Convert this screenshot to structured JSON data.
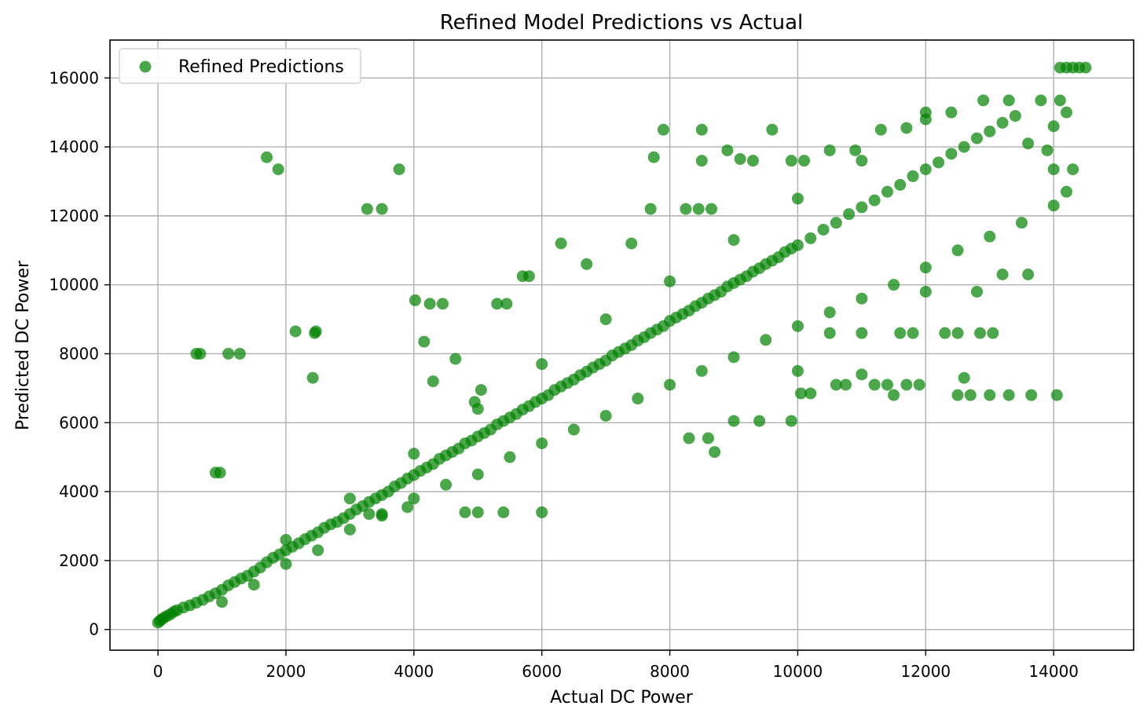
{
  "chart_data": {
    "type": "scatter",
    "title": "Refined Model Predictions vs Actual",
    "xlabel": "Actual DC Power",
    "ylabel": "Predicted DC Power",
    "xlim": [
      -750,
      15250
    ],
    "ylim": [
      -600,
      17100
    ],
    "xticks": [
      0,
      2000,
      4000,
      6000,
      8000,
      10000,
      12000,
      14000
    ],
    "yticks": [
      0,
      2000,
      4000,
      6000,
      8000,
      10000,
      12000,
      14000,
      16000
    ],
    "xtick_labels": [
      "0",
      "2000",
      "4000",
      "6000",
      "8000",
      "10000",
      "12000",
      "14000"
    ],
    "ytick_labels": [
      "0",
      "2000",
      "4000",
      "6000",
      "8000",
      "10000",
      "12000",
      "14000",
      "16000"
    ],
    "grid": true,
    "legend_position": "top-left",
    "series": [
      {
        "name": "Refined Predictions",
        "color": "#008000",
        "alpha": 0.7,
        "points": [
          [
            0,
            200
          ],
          [
            30,
            250
          ],
          [
            60,
            300
          ],
          [
            100,
            350
          ],
          [
            150,
            400
          ],
          [
            200,
            450
          ],
          [
            250,
            520
          ],
          [
            300,
            560
          ],
          [
            400,
            640
          ],
          [
            500,
            700
          ],
          [
            600,
            780
          ],
          [
            700,
            860
          ],
          [
            800,
            960
          ],
          [
            900,
            1050
          ],
          [
            1000,
            1150
          ],
          [
            1100,
            1280
          ],
          [
            1200,
            1380
          ],
          [
            1300,
            1480
          ],
          [
            1400,
            1560
          ],
          [
            1500,
            1680
          ],
          [
            1600,
            1800
          ],
          [
            1700,
            1950
          ],
          [
            1800,
            2080
          ],
          [
            1900,
            2180
          ],
          [
            2000,
            2300
          ],
          [
            2100,
            2400
          ],
          [
            2200,
            2500
          ],
          [
            2300,
            2620
          ],
          [
            2400,
            2720
          ],
          [
            2500,
            2820
          ],
          [
            2600,
            2950
          ],
          [
            2700,
            3050
          ],
          [
            2800,
            3120
          ],
          [
            2900,
            3230
          ],
          [
            3000,
            3350
          ],
          [
            3100,
            3480
          ],
          [
            3200,
            3580
          ],
          [
            3300,
            3700
          ],
          [
            3400,
            3800
          ],
          [
            3500,
            3900
          ],
          [
            3600,
            4000
          ],
          [
            3700,
            4150
          ],
          [
            3800,
            4250
          ],
          [
            3900,
            4380
          ],
          [
            4000,
            4480
          ],
          [
            4100,
            4600
          ],
          [
            4200,
            4700
          ],
          [
            4300,
            4800
          ],
          [
            4400,
            4950
          ],
          [
            4500,
            5050
          ],
          [
            4600,
            5150
          ],
          [
            4700,
            5250
          ],
          [
            4800,
            5400
          ],
          [
            4900,
            5480
          ],
          [
            5000,
            5600
          ],
          [
            5100,
            5700
          ],
          [
            5200,
            5800
          ],
          [
            5300,
            5950
          ],
          [
            5400,
            6050
          ],
          [
            5500,
            6150
          ],
          [
            5600,
            6250
          ],
          [
            5700,
            6380
          ],
          [
            5800,
            6480
          ],
          [
            5900,
            6600
          ],
          [
            6000,
            6700
          ],
          [
            6100,
            6800
          ],
          [
            6200,
            6950
          ],
          [
            6300,
            7050
          ],
          [
            6400,
            7150
          ],
          [
            6500,
            7250
          ],
          [
            6600,
            7380
          ],
          [
            6700,
            7480
          ],
          [
            6800,
            7600
          ],
          [
            6900,
            7700
          ],
          [
            7000,
            7800
          ],
          [
            7100,
            7950
          ],
          [
            7200,
            8050
          ],
          [
            7300,
            8150
          ],
          [
            7400,
            8250
          ],
          [
            7500,
            8380
          ],
          [
            7600,
            8480
          ],
          [
            7700,
            8600
          ],
          [
            7800,
            8700
          ],
          [
            7900,
            8800
          ],
          [
            8000,
            8950
          ],
          [
            8100,
            9050
          ],
          [
            8200,
            9150
          ],
          [
            8300,
            9250
          ],
          [
            8400,
            9380
          ],
          [
            8500,
            9480
          ],
          [
            8600,
            9600
          ],
          [
            8700,
            9700
          ],
          [
            8800,
            9800
          ],
          [
            8900,
            9950
          ],
          [
            9000,
            10050
          ],
          [
            9100,
            10150
          ],
          [
            9200,
            10250
          ],
          [
            9300,
            10380
          ],
          [
            9400,
            10480
          ],
          [
            9500,
            10600
          ],
          [
            9600,
            10700
          ],
          [
            9700,
            10800
          ],
          [
            9800,
            10950
          ],
          [
            9900,
            11050
          ],
          [
            10000,
            11150
          ],
          [
            10200,
            11350
          ],
          [
            10400,
            11600
          ],
          [
            10600,
            11800
          ],
          [
            10800,
            12050
          ],
          [
            11000,
            12250
          ],
          [
            11200,
            12450
          ],
          [
            11400,
            12700
          ],
          [
            11600,
            12900
          ],
          [
            11800,
            13150
          ],
          [
            12000,
            13350
          ],
          [
            12200,
            13550
          ],
          [
            12400,
            13800
          ],
          [
            12600,
            14000
          ],
          [
            12800,
            14250
          ],
          [
            13000,
            14450
          ],
          [
            13200,
            14700
          ],
          [
            13400,
            14900
          ],
          [
            1000,
            800
          ],
          [
            1500,
            1300
          ],
          [
            2000,
            1900
          ],
          [
            2500,
            2300
          ],
          [
            3000,
            2900
          ],
          [
            3500,
            3300
          ],
          [
            4000,
            3800
          ],
          [
            4500,
            4200
          ],
          [
            5000,
            4500
          ],
          [
            5500,
            5000
          ],
          [
            6000,
            5400
          ],
          [
            6500,
            5800
          ],
          [
            7000,
            6200
          ],
          [
            7500,
            6700
          ],
          [
            8000,
            7100
          ],
          [
            8500,
            7500
          ],
          [
            9000,
            7900
          ],
          [
            9500,
            8400
          ],
          [
            10000,
            8800
          ],
          [
            10500,
            9200
          ],
          [
            11000,
            9600
          ],
          [
            11500,
            10000
          ],
          [
            12000,
            10500
          ],
          [
            12500,
            11000
          ],
          [
            13000,
            11400
          ],
          [
            13500,
            11800
          ],
          [
            14000,
            12300
          ],
          [
            14200,
            12700
          ],
          [
            2000,
            2600
          ],
          [
            3000,
            3800
          ],
          [
            4000,
            5100
          ],
          [
            5000,
            6400
          ],
          [
            6000,
            7700
          ],
          [
            7000,
            9000
          ],
          [
            8000,
            10100
          ],
          [
            9000,
            11300
          ],
          [
            10000,
            12500
          ],
          [
            11000,
            13600
          ],
          [
            12000,
            14800
          ],
          [
            600,
            8000
          ],
          [
            660,
            8000
          ],
          [
            1100,
            8000
          ],
          [
            1280,
            8000
          ],
          [
            1700,
            13700
          ],
          [
            1880,
            13350
          ],
          [
            2150,
            8650
          ],
          [
            2450,
            8600
          ],
          [
            2470,
            8650
          ],
          [
            2420,
            7300
          ],
          [
            900,
            4550
          ],
          [
            970,
            4550
          ],
          [
            3270,
            12200
          ],
          [
            3500,
            12200
          ],
          [
            3770,
            13350
          ],
          [
            4020,
            9550
          ],
          [
            4250,
            9450
          ],
          [
            4450,
            9450
          ],
          [
            4160,
            8350
          ],
          [
            4300,
            7200
          ],
          [
            4650,
            7850
          ],
          [
            4950,
            6600
          ],
          [
            5050,
            6950
          ],
          [
            5300,
            9450
          ],
          [
            5450,
            9450
          ],
          [
            5700,
            10250
          ],
          [
            5800,
            10250
          ],
          [
            6300,
            11200
          ],
          [
            6700,
            10600
          ],
          [
            7400,
            11200
          ],
          [
            7750,
            13700
          ],
          [
            7900,
            14500
          ],
          [
            8500,
            14500
          ],
          [
            8500,
            13600
          ],
          [
            7700,
            12200
          ],
          [
            8250,
            12200
          ],
          [
            8450,
            12200
          ],
          [
            8650,
            12200
          ],
          [
            8900,
            13900
          ],
          [
            9100,
            13650
          ],
          [
            9600,
            14500
          ],
          [
            9300,
            13600
          ],
          [
            9900,
            13600
          ],
          [
            10100,
            13600
          ],
          [
            10500,
            13900
          ],
          [
            10900,
            13900
          ],
          [
            11300,
            14500
          ],
          [
            11700,
            14550
          ],
          [
            12000,
            15000
          ],
          [
            12400,
            15000
          ],
          [
            12900,
            15350
          ],
          [
            13300,
            15350
          ],
          [
            13800,
            15350
          ],
          [
            14100,
            15350
          ],
          [
            14200,
            15000
          ],
          [
            14000,
            14600
          ],
          [
            13600,
            14100
          ],
          [
            13900,
            13900
          ],
          [
            14000,
            13350
          ],
          [
            14300,
            13350
          ],
          [
            14100,
            16300
          ],
          [
            14200,
            16300
          ],
          [
            14300,
            16300
          ],
          [
            14400,
            16300
          ],
          [
            14500,
            16300
          ],
          [
            8700,
            5150
          ],
          [
            8300,
            5550
          ],
          [
            8600,
            5550
          ],
          [
            9000,
            6050
          ],
          [
            9400,
            6050
          ],
          [
            9900,
            6050
          ],
          [
            10000,
            7500
          ],
          [
            10050,
            6850
          ],
          [
            10200,
            6850
          ],
          [
            10600,
            7100
          ],
          [
            10750,
            7100
          ],
          [
            11000,
            7400
          ],
          [
            11200,
            7100
          ],
          [
            11500,
            6800
          ],
          [
            11400,
            7100
          ],
          [
            11700,
            7100
          ],
          [
            11900,
            7100
          ],
          [
            12500,
            6800
          ],
          [
            12700,
            6800
          ],
          [
            12600,
            7300
          ],
          [
            13000,
            6800
          ],
          [
            13300,
            6800
          ],
          [
            13650,
            6800
          ],
          [
            14050,
            6800
          ],
          [
            12300,
            8600
          ],
          [
            12500,
            8600
          ],
          [
            12850,
            8600
          ],
          [
            13050,
            8600
          ],
          [
            11800,
            8600
          ],
          [
            11600,
            8600
          ],
          [
            12000,
            9800
          ],
          [
            12800,
            9800
          ],
          [
            13200,
            10300
          ],
          [
            13600,
            10300
          ],
          [
            10500,
            8600
          ],
          [
            11000,
            8600
          ],
          [
            6000,
            3400
          ],
          [
            5400,
            3400
          ],
          [
            5000,
            3400
          ],
          [
            4800,
            3400
          ],
          [
            3500,
            3350
          ],
          [
            3900,
            3550
          ],
          [
            3300,
            3350
          ]
        ]
      }
    ]
  }
}
